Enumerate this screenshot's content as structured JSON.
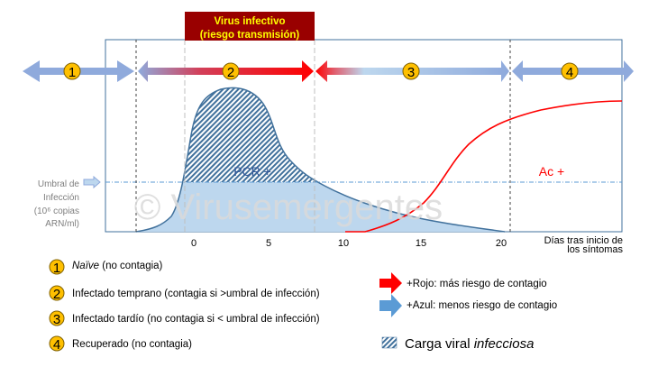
{
  "banner": {
    "line1": "Virus infectivo",
    "line2": "(riesgo transmisión)"
  },
  "phases": [
    "1",
    "2",
    "3",
    "4"
  ],
  "threshold_label": [
    "Umbral de",
    "Infección",
    "(10⁶ copias",
    "ARN/ml)"
  ],
  "x_axis": {
    "ticks": [
      "0",
      "5",
      "10",
      "15",
      "20"
    ],
    "label_line1": "Días tras inicio de",
    "label_line2": "los síntomas"
  },
  "curve_labels": {
    "pcr": "PCR +",
    "ac": "Ac +"
  },
  "watermark": "© Virusemergentes",
  "legend": {
    "items": [
      {
        "num": "1",
        "label_italic": "Naïve",
        "label": " (no contagia)"
      },
      {
        "num": "2",
        "label": "Infectado temprano (contagia si >umbral de infección)"
      },
      {
        "num": "3",
        "label": "Infectado tardío (no contagia si < umbral de infección)"
      },
      {
        "num": "4",
        "label": "Recuperado (no contagia)"
      }
    ],
    "red": "+Rojo: más riesgo de contagio",
    "blue": "+Azul: menos riesgo de contagio",
    "hatch_label": "Carga viral ",
    "hatch_label_italic": "infecciosa"
  },
  "colors": {
    "banner": "#990000",
    "banner_text": "#ffff00",
    "red": "#ff0000",
    "blue": "#8faadc",
    "viral_fill": "#bdd7ee",
    "viral_line": "#41719c",
    "badge": "#ffc000"
  }
}
